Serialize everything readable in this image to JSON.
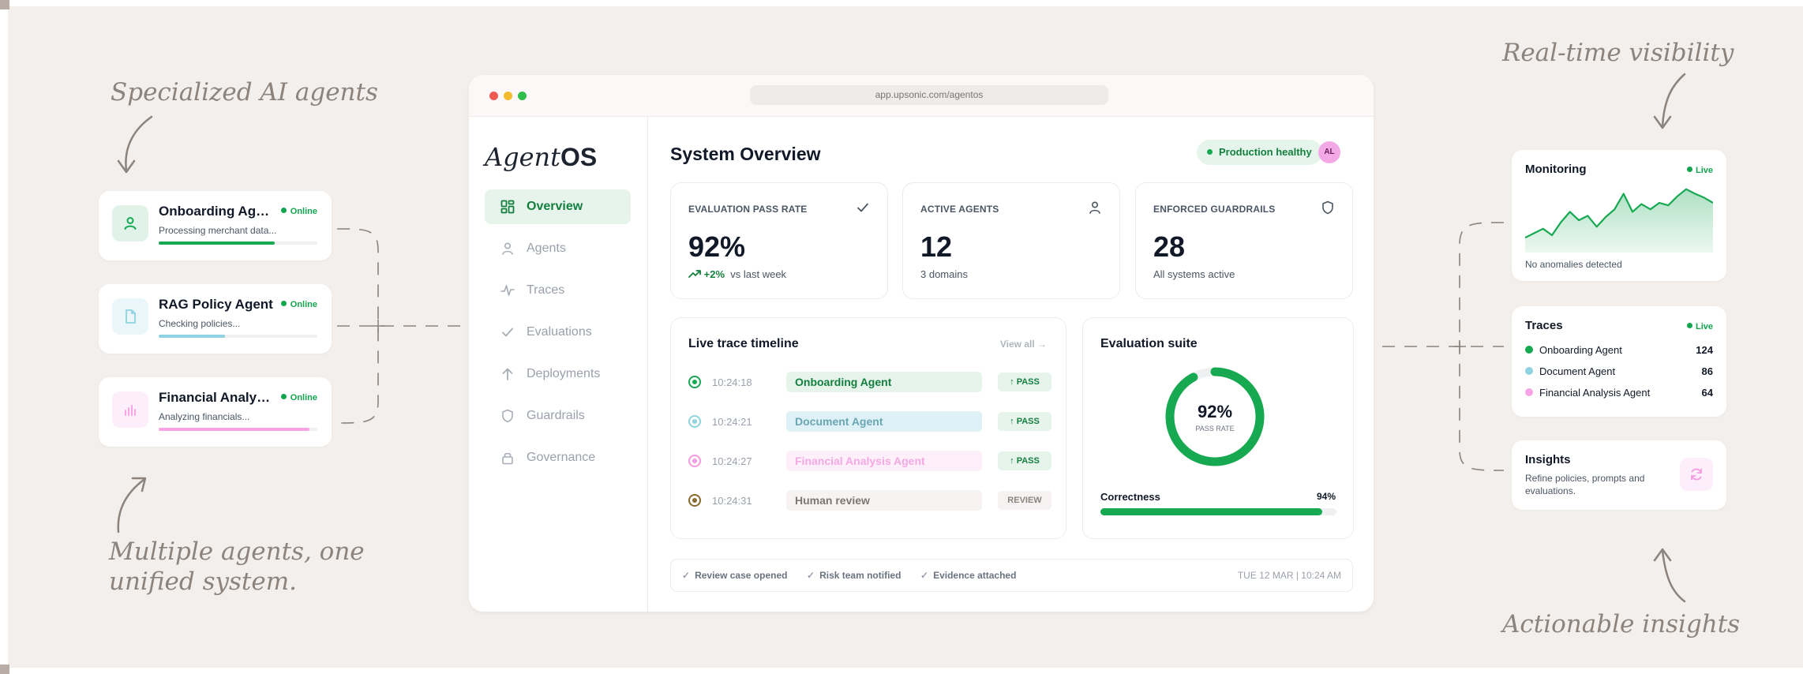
{
  "annotations": {
    "top_left": "Specialized AI agents",
    "bottom_left_line1": "Multiple agents, one",
    "bottom_left_line2": "unified system.",
    "top_right": "Real-time visibility",
    "bottom_right": "Actionable insights"
  },
  "agents": [
    {
      "name": "Onboarding Agent",
      "status": "Online",
      "desc": "Processing merchant data...",
      "progress": 0.73,
      "color": "#17a852",
      "icon": "user-icon"
    },
    {
      "name": "RAG Policy Agent",
      "status": "Online",
      "desc": "Checking policies...",
      "progress": 0.42,
      "color": "#8fd3e0",
      "icon": "document-icon"
    },
    {
      "name": "Financial Analysis Agent",
      "status": "Online",
      "desc": "Analyzing financials...",
      "progress": 0.95,
      "color": "#f6a4e5",
      "icon": "bar-chart-icon"
    }
  ],
  "window": {
    "url": "app.upsonic.com/agentos",
    "logo_italic": "Agent",
    "logo_bold": "OS",
    "nav": [
      {
        "label": "Overview",
        "icon": "grid-icon",
        "active": true
      },
      {
        "label": "Agents",
        "icon": "user-icon",
        "active": false
      },
      {
        "label": "Traces",
        "icon": "pulse-icon",
        "active": false
      },
      {
        "label": "Evaluations",
        "icon": "check-icon",
        "active": false
      },
      {
        "label": "Deployments",
        "icon": "arrow-up-icon",
        "active": false
      },
      {
        "label": "Guardrails",
        "icon": "shield-icon",
        "active": false
      },
      {
        "label": "Governance",
        "icon": "lock-icon",
        "active": false
      }
    ],
    "title": "System Overview",
    "health": "Production healthy",
    "avatar": "AL",
    "stats": [
      {
        "label": "EVALUATION PASS RATE",
        "value": "92%",
        "delta": "+2%",
        "sub": "vs last week",
        "icon": "check-icon"
      },
      {
        "label": "ACTIVE AGENTS",
        "value": "12",
        "sub": "3 domains",
        "icon": "user-icon"
      },
      {
        "label": "ENFORCED GUARDRAILS",
        "value": "28",
        "sub": "All systems active",
        "icon": "shield-icon"
      }
    ],
    "timeline": {
      "title": "Live trace timeline",
      "view_all": "View all →",
      "rows": [
        {
          "time": "10:24:18",
          "label": "Onboarding Agent",
          "badge": "↑ PASS",
          "dot": "#17a852",
          "bg": "#e7f4ec",
          "fg": "#137f3e",
          "badge_bg": "#e7f4ec",
          "badge_fg": "#137f3e"
        },
        {
          "time": "10:24:21",
          "label": "Document Agent",
          "badge": "↑ PASS",
          "dot": "#8fd3e0",
          "bg": "#def1f6",
          "fg": "#6aa6b3",
          "badge_bg": "#e7f4ec",
          "badge_fg": "#137f3e"
        },
        {
          "time": "10:24:27",
          "label": "Financial Analysis Agent",
          "badge": "↑ PASS",
          "dot": "#f49ae0",
          "bg": "#fdf0fb",
          "fg": "#f3a8e2",
          "badge_bg": "#e7f4ec",
          "badge_fg": "#137f3e"
        },
        {
          "time": "10:24:31",
          "label": "Human review",
          "badge": "REVIEW",
          "dot": "#8a6a2f",
          "bg": "#f7f3f2",
          "fg": "#7f7570",
          "badge_bg": "#f5f2f1",
          "badge_fg": "#8c837d"
        }
      ]
    },
    "eval_suite": {
      "title": "Evaluation suite",
      "gauge_value": "92%",
      "gauge_fraction": 0.92,
      "gauge_label": "PASS RATE",
      "metric_label": "Correctness",
      "metric_value": "94%",
      "metric_fraction": 0.94
    },
    "footer": {
      "items": [
        "Review case opened",
        "Risk team notified",
        "Evidence attached"
      ],
      "timestamp": "TUE 12 MAR | 10:24 AM"
    }
  },
  "monitoring": {
    "title": "Monitoring",
    "live": "Live",
    "note": "No anomalies detected",
    "series": [
      0.18,
      0.25,
      0.32,
      0.22,
      0.42,
      0.58,
      0.45,
      0.52,
      0.35,
      0.5,
      0.62,
      0.86,
      0.58,
      0.7,
      0.62,
      0.72,
      0.68,
      0.82,
      0.93,
      0.86,
      0.8,
      0.72
    ]
  },
  "traces": {
    "title": "Traces",
    "live": "Live",
    "rows": [
      {
        "name": "Onboarding Agent",
        "count": "124",
        "color": "#17a852"
      },
      {
        "name": "Document Agent",
        "count": "86",
        "color": "#8fd3e0"
      },
      {
        "name": "Financial Analysis Agent",
        "count": "64",
        "color": "#f6a4e5"
      }
    ]
  },
  "insights": {
    "title": "Insights",
    "desc": "Refine policies, prompts and evaluations.",
    "icon": "refresh-icon"
  }
}
